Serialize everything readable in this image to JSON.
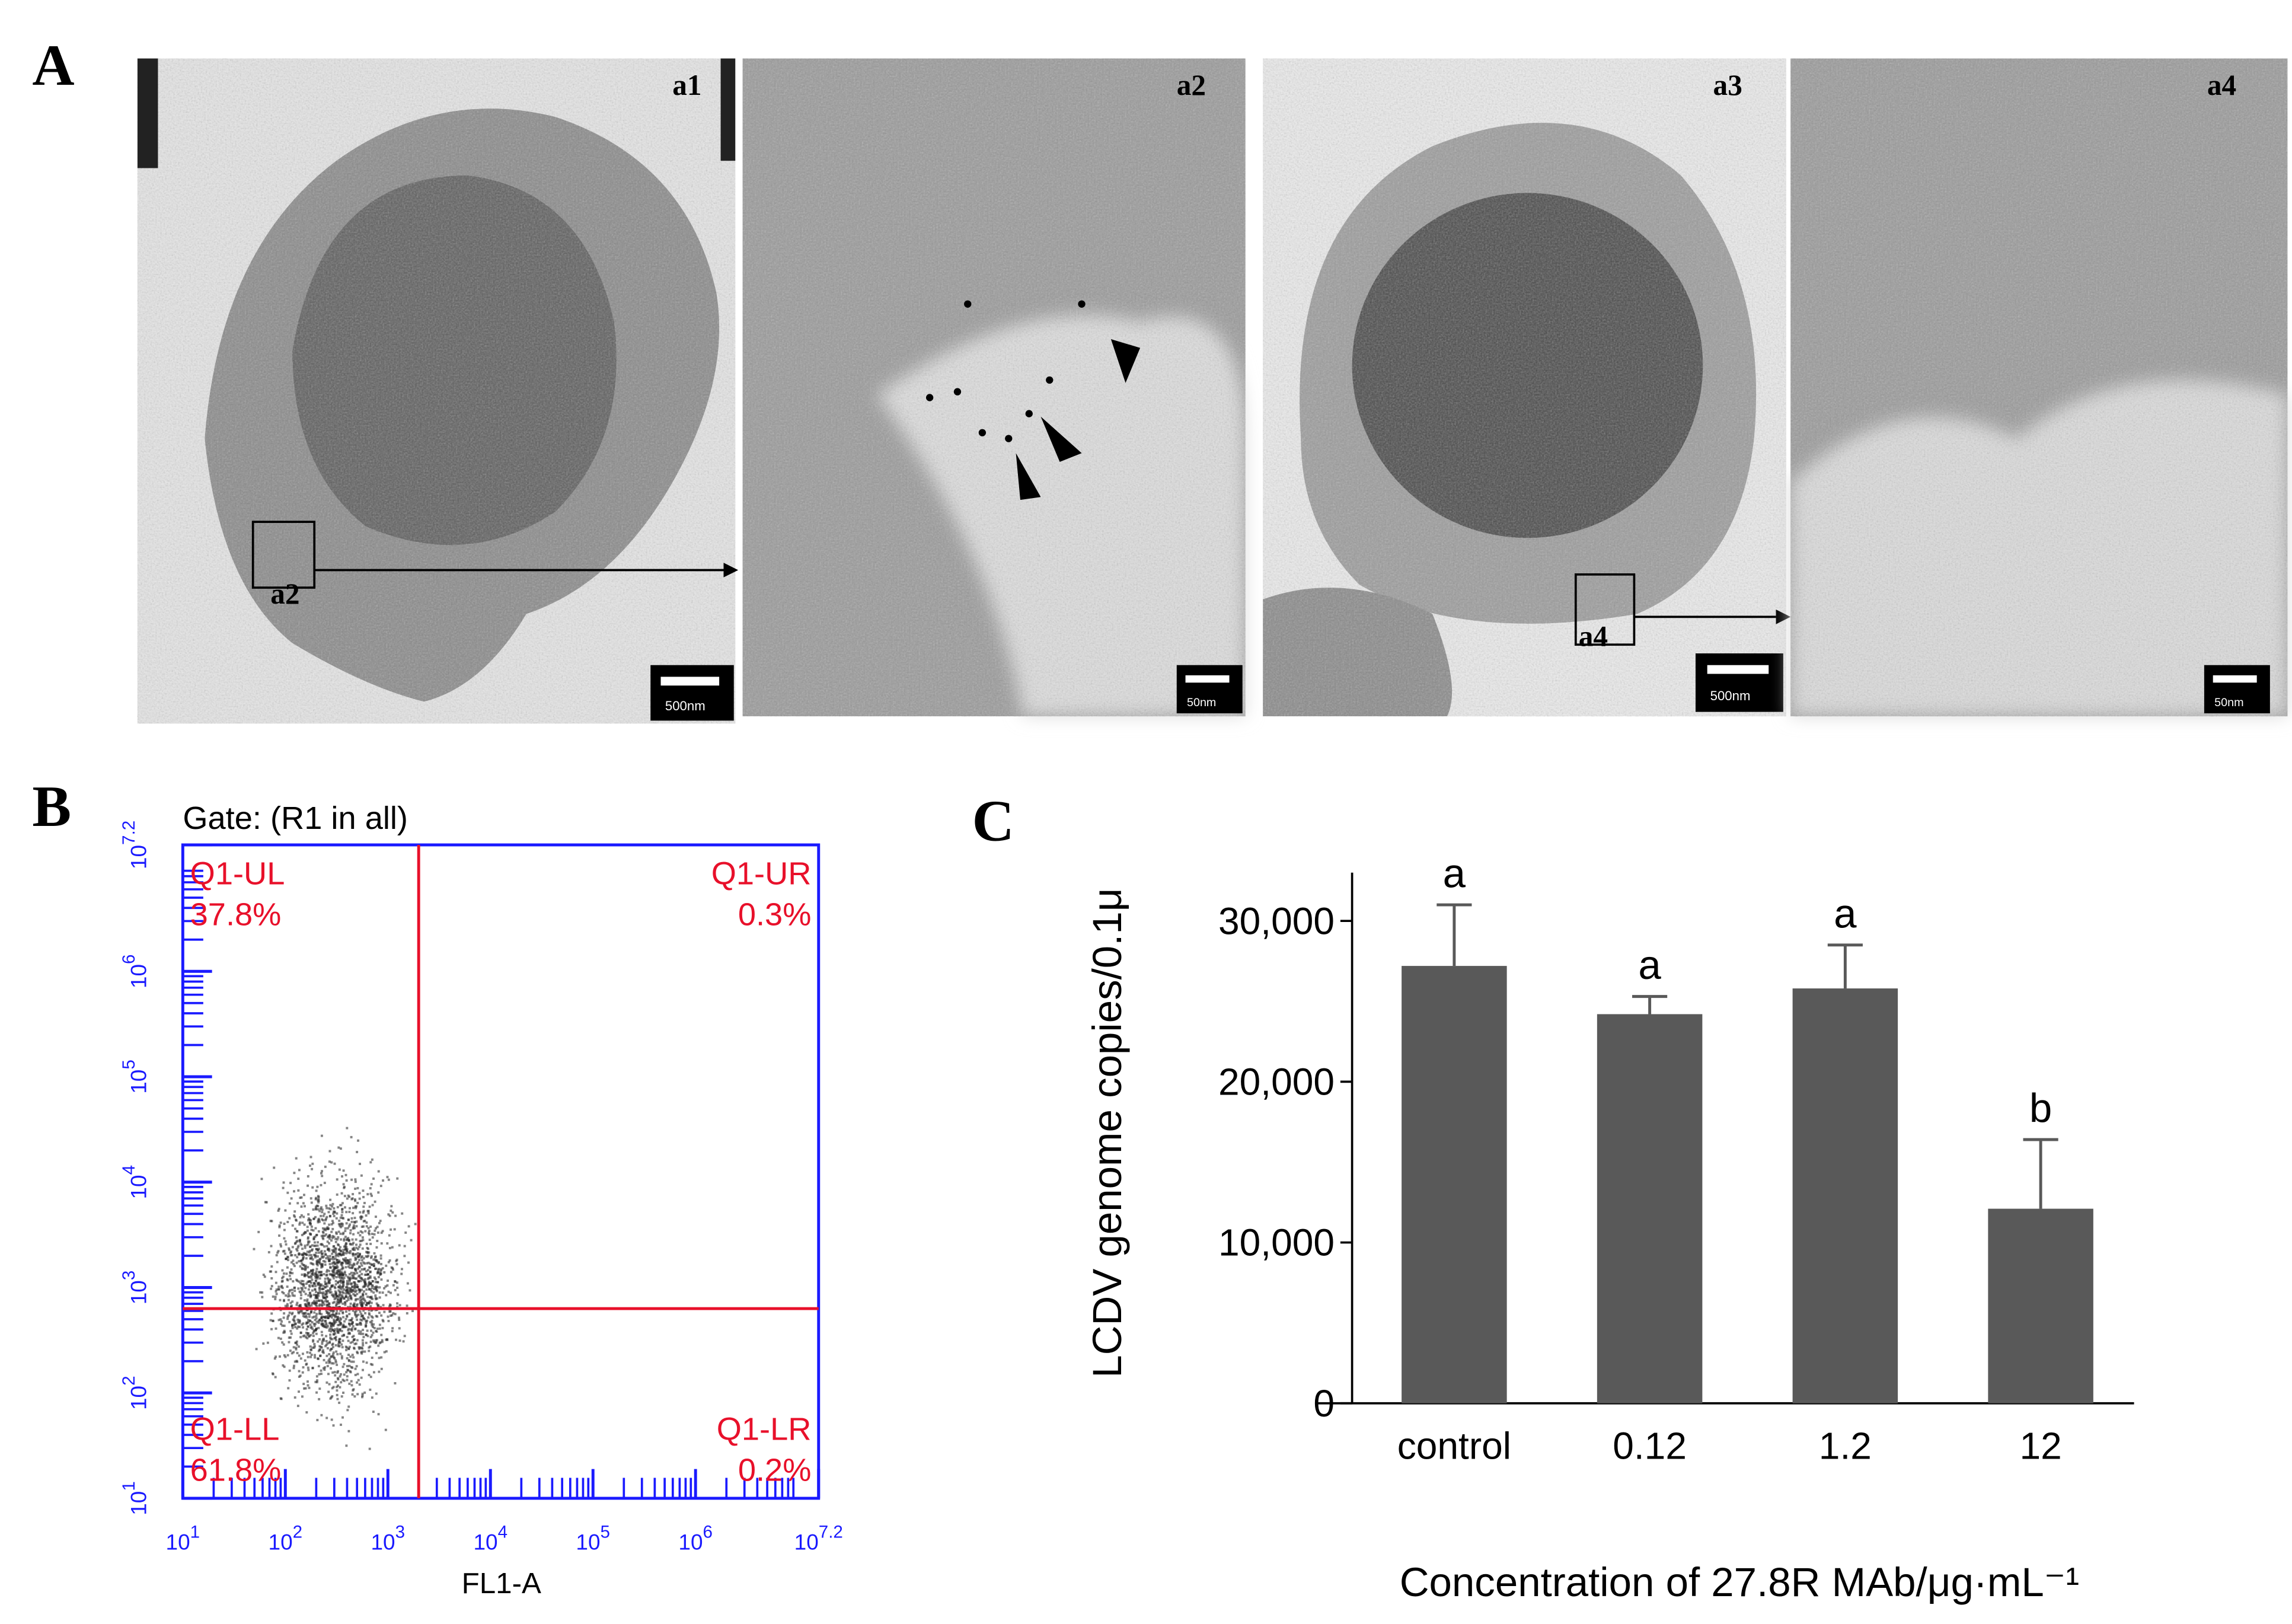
{
  "panel_labels": {
    "a": "A",
    "b": "B",
    "c": "C"
  },
  "micrographs": [
    {
      "label": "a1",
      "inset": "a2",
      "scale": "500nm"
    },
    {
      "label": "a2",
      "scale": "50nm"
    },
    {
      "label": "a3",
      "inset": "a4",
      "scale": "500nm"
    },
    {
      "label": "a4",
      "scale": "50nm"
    }
  ],
  "chart_data": [
    {
      "type": "quadrant",
      "title": "Gate: (R1 in all)",
      "x_label": "FL1-A",
      "tick_base": "10",
      "xlim": [
        1,
        7.2
      ],
      "ylim": [
        1,
        7.2
      ],
      "xticks": [
        1,
        2,
        3,
        4,
        5,
        6,
        7.2
      ],
      "yticks": [
        1,
        2,
        3,
        4,
        5,
        6,
        7.2
      ],
      "log": true,
      "gates": {
        "x": 3.3,
        "y": 2.8
      },
      "categories": [
        "Q1-UL",
        "Q1-UR",
        "Q1-LL",
        "Q1-LR"
      ],
      "values": [
        37.8,
        0.3,
        61.8,
        0.2
      ],
      "value_labels": [
        "37.8%",
        "0.3%",
        "61.8%",
        "0.2%"
      ],
      "color": "#e8102a",
      "axis_color": "#1a1aff"
    },
    {
      "type": "bar",
      "y_label": "LCDV genome copies/0.1μ",
      "x_label": "Concentration of 27.8R MAb/μg·mL⁻¹",
      "categories": [
        "control",
        "0.12",
        "1.2",
        "12"
      ],
      "values": [
        27200,
        24200,
        25800,
        12100
      ],
      "errors": [
        3800,
        1100,
        2700,
        4300
      ],
      "annotations": [
        "a",
        "a",
        "a",
        "b"
      ],
      "ylim": [
        0,
        33000
      ],
      "yticks": [
        0,
        {
          "value": 10000,
          "label": "10,000"
        },
        {
          "value": 20000,
          "label": "20,000"
        },
        {
          "value": 30000,
          "label": "30,000"
        }
      ],
      "color": "#595959"
    }
  ]
}
